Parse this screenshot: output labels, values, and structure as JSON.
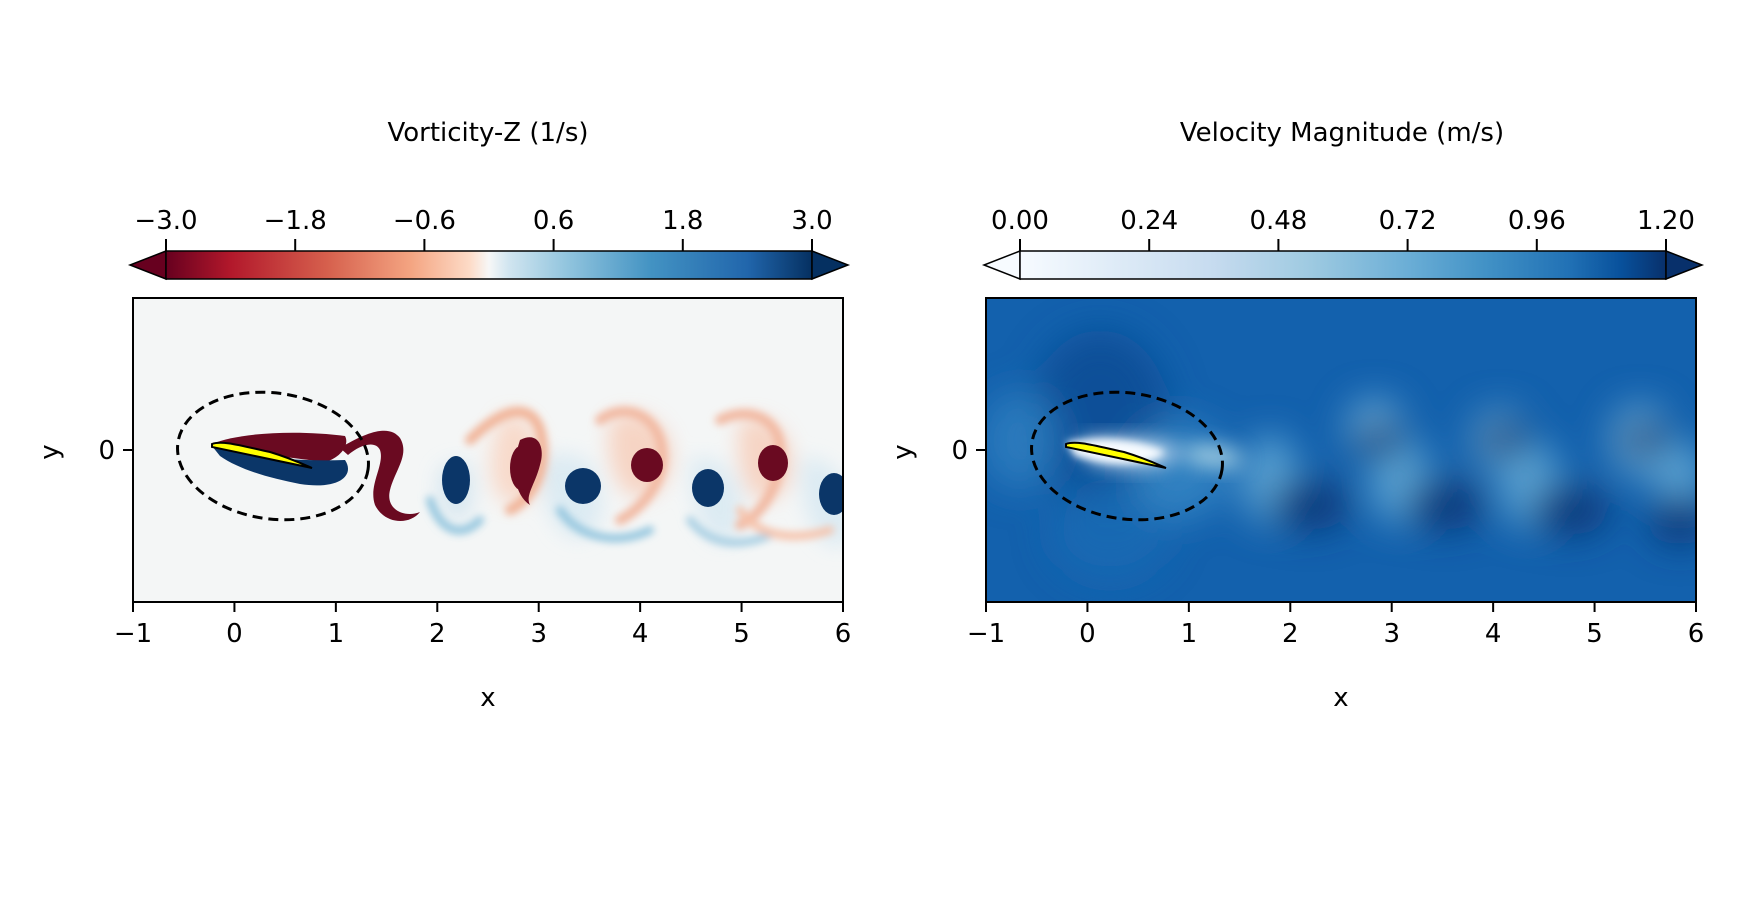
{
  "chart_data": [
    {
      "type": "heatmap",
      "title": "",
      "colorbar_label": "Vorticity-Z (1/s)",
      "colormap": "RdBu",
      "colorbar_ticks": [
        "−3.0",
        "−1.8",
        "−0.6",
        "0.6",
        "1.8",
        "3.0"
      ],
      "clim": [
        -3.0,
        3.0
      ],
      "colorbar_extend": "both",
      "xlabel": "x",
      "ylabel": "y",
      "xlim": [
        -1,
        6
      ],
      "x_ticks": [
        "−1",
        "0",
        "1",
        "2",
        "3",
        "4",
        "5",
        "6"
      ],
      "y_ticks": [
        "0"
      ],
      "background_value": 0.0,
      "airfoil_color": "#ffff00",
      "highlight_ellipse": "dashed black",
      "features": [
        {
          "kind": "shear-layer",
          "x": 0.4,
          "y": 0.1,
          "value": -3.0
        },
        {
          "kind": "shear-layer",
          "x": 0.5,
          "y": -0.15,
          "value": 3.0
        },
        {
          "kind": "vortex",
          "x": 1.45,
          "y": 0.0,
          "value": -3.0
        },
        {
          "kind": "vortex",
          "x": 2.15,
          "y": -0.3,
          "value": 3.0
        },
        {
          "kind": "vortex",
          "x": 2.85,
          "y": 0.0,
          "value": -3.0
        },
        {
          "kind": "vortex",
          "x": 3.4,
          "y": -0.3,
          "value": 3.0
        },
        {
          "kind": "vortex",
          "x": 4.1,
          "y": 0.0,
          "value": -3.0
        },
        {
          "kind": "vortex",
          "x": 4.65,
          "y": -0.35,
          "value": 3.0
        },
        {
          "kind": "vortex",
          "x": 5.3,
          "y": 0.0,
          "value": -3.0
        },
        {
          "kind": "vortex",
          "x": 5.95,
          "y": -0.4,
          "value": 3.0
        }
      ]
    },
    {
      "type": "heatmap",
      "title": "",
      "colorbar_label": "Velocity Magnitude (m/s)",
      "colormap": "Blues",
      "colorbar_ticks": [
        "0.00",
        "0.24",
        "0.48",
        "0.72",
        "0.96",
        "1.20"
      ],
      "clim": [
        0.0,
        1.2
      ],
      "colorbar_extend": "both",
      "xlabel": "x",
      "ylabel": "y",
      "xlim": [
        -1,
        6
      ],
      "x_ticks": [
        "−1",
        "0",
        "1",
        "2",
        "3",
        "4",
        "5",
        "6"
      ],
      "y_ticks": [
        "0"
      ],
      "background_value": 1.0,
      "airfoil_color": "#ffff00",
      "highlight_ellipse": "dashed black",
      "features": [
        {
          "kind": "wake-low",
          "x": 1.2,
          "y": 0.05,
          "value": 0.1
        },
        {
          "kind": "wake-low",
          "x": 2.2,
          "y": -0.1,
          "value": 0.75
        },
        {
          "kind": "wake-low",
          "x": 3.45,
          "y": -0.05,
          "value": 0.75
        },
        {
          "kind": "wake-low",
          "x": 4.7,
          "y": -0.1,
          "value": 0.75
        },
        {
          "kind": "wake-low",
          "x": 5.95,
          "y": -0.15,
          "value": 0.75
        },
        {
          "kind": "wake-high",
          "x": 1.6,
          "y": -0.6,
          "value": 1.2
        },
        {
          "kind": "wake-high",
          "x": 2.8,
          "y": -0.6,
          "value": 1.2
        },
        {
          "kind": "wake-high",
          "x": 4.0,
          "y": -0.55,
          "value": 1.2
        },
        {
          "kind": "wake-high",
          "x": 5.3,
          "y": -0.55,
          "value": 1.2
        }
      ]
    }
  ]
}
